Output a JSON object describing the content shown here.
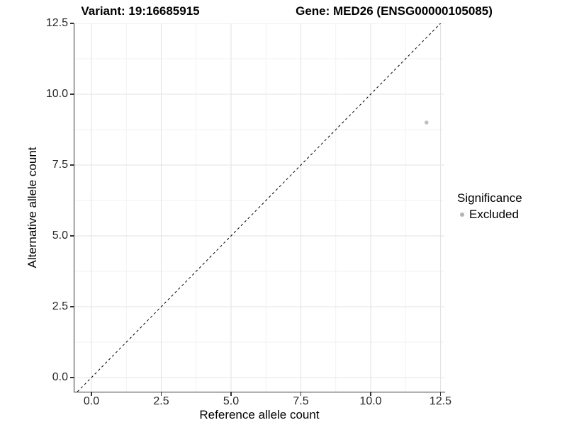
{
  "titles": {
    "variant": "Variant: 19:16685915",
    "gene": "Gene: MED26 (ENSG00000105085)"
  },
  "axes": {
    "x_label": "Reference allele count",
    "y_label": "Alternative allele count",
    "x_tick_labels": [
      "0.0",
      "2.5",
      "5.0",
      "7.5",
      "10.0",
      "12.5"
    ],
    "y_tick_labels": [
      "0.0",
      "2.5",
      "5.0",
      "7.5",
      "10.0",
      "12.5"
    ]
  },
  "legend": {
    "title": "Significance",
    "items": [
      {
        "label": "Excluded",
        "color": "#b3b3b3"
      }
    ]
  },
  "colors": {
    "point": "#c0c0c0",
    "axis_line": "#333333",
    "grid_major": "#e3e3e3",
    "grid_minor": "#f1f1f1",
    "reference_line": "#000000"
  },
  "chart_data": {
    "type": "scatter",
    "title_left": "Variant: 19:16685915",
    "title_right": "Gene: MED26 (ENSG00000105085)",
    "xlabel": "Reference allele count",
    "ylabel": "Alternative allele count",
    "x_ticks": [
      0,
      2.5,
      5,
      7.5,
      10,
      12.5
    ],
    "y_ticks": [
      0,
      2.5,
      5,
      7.5,
      10,
      12.5
    ],
    "xlim": [
      -0.61,
      12.64
    ],
    "ylim": [
      -0.5,
      12.5
    ],
    "grid": "major+minor",
    "legend_position": "right",
    "legend_title": "Significance",
    "series": [
      {
        "name": "Excluded",
        "color": "#c0c0c0",
        "points": [
          {
            "x": 12,
            "y": 9
          }
        ]
      }
    ],
    "reference_line": {
      "type": "abline",
      "slope": 1,
      "intercept": 0,
      "style": "dashed",
      "color": "#000000"
    }
  }
}
